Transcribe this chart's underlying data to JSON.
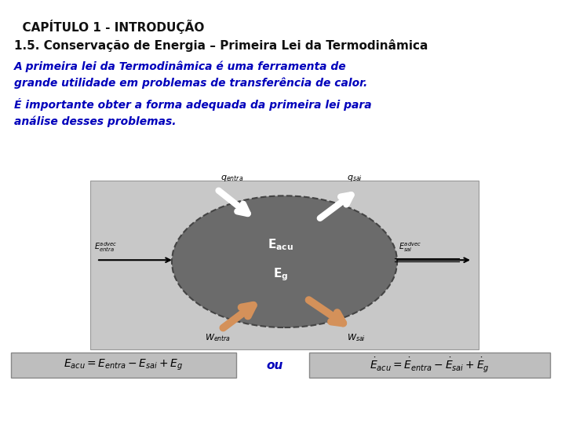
{
  "title": "  CAPÍTULO 1 - INTRODUÇÃO",
  "subtitle": "1.5. Conservação de Energia – Primeira Lei da Termodinâmica",
  "para1": "A primeira lei da Termodinâmica é uma ferramenta de\ngrande utilidade em problemas de transferência de calor.",
  "para2": "É importante obter a forma adequada da primeira lei para\nanálise desses problemas.",
  "blue_color": "#0000BB",
  "black_color": "#111111",
  "bg_color": "#FFFFFF",
  "box_bg": "#BEBEBE",
  "diag_bg": "#C8C8C8",
  "blob_color": "#6B6B6B",
  "blob_edge": "#444444",
  "title_fontsize": 11,
  "subtitle_fontsize": 11,
  "body_fontsize": 10,
  "formula_fontsize": 10,
  "ou_fontsize": 11
}
